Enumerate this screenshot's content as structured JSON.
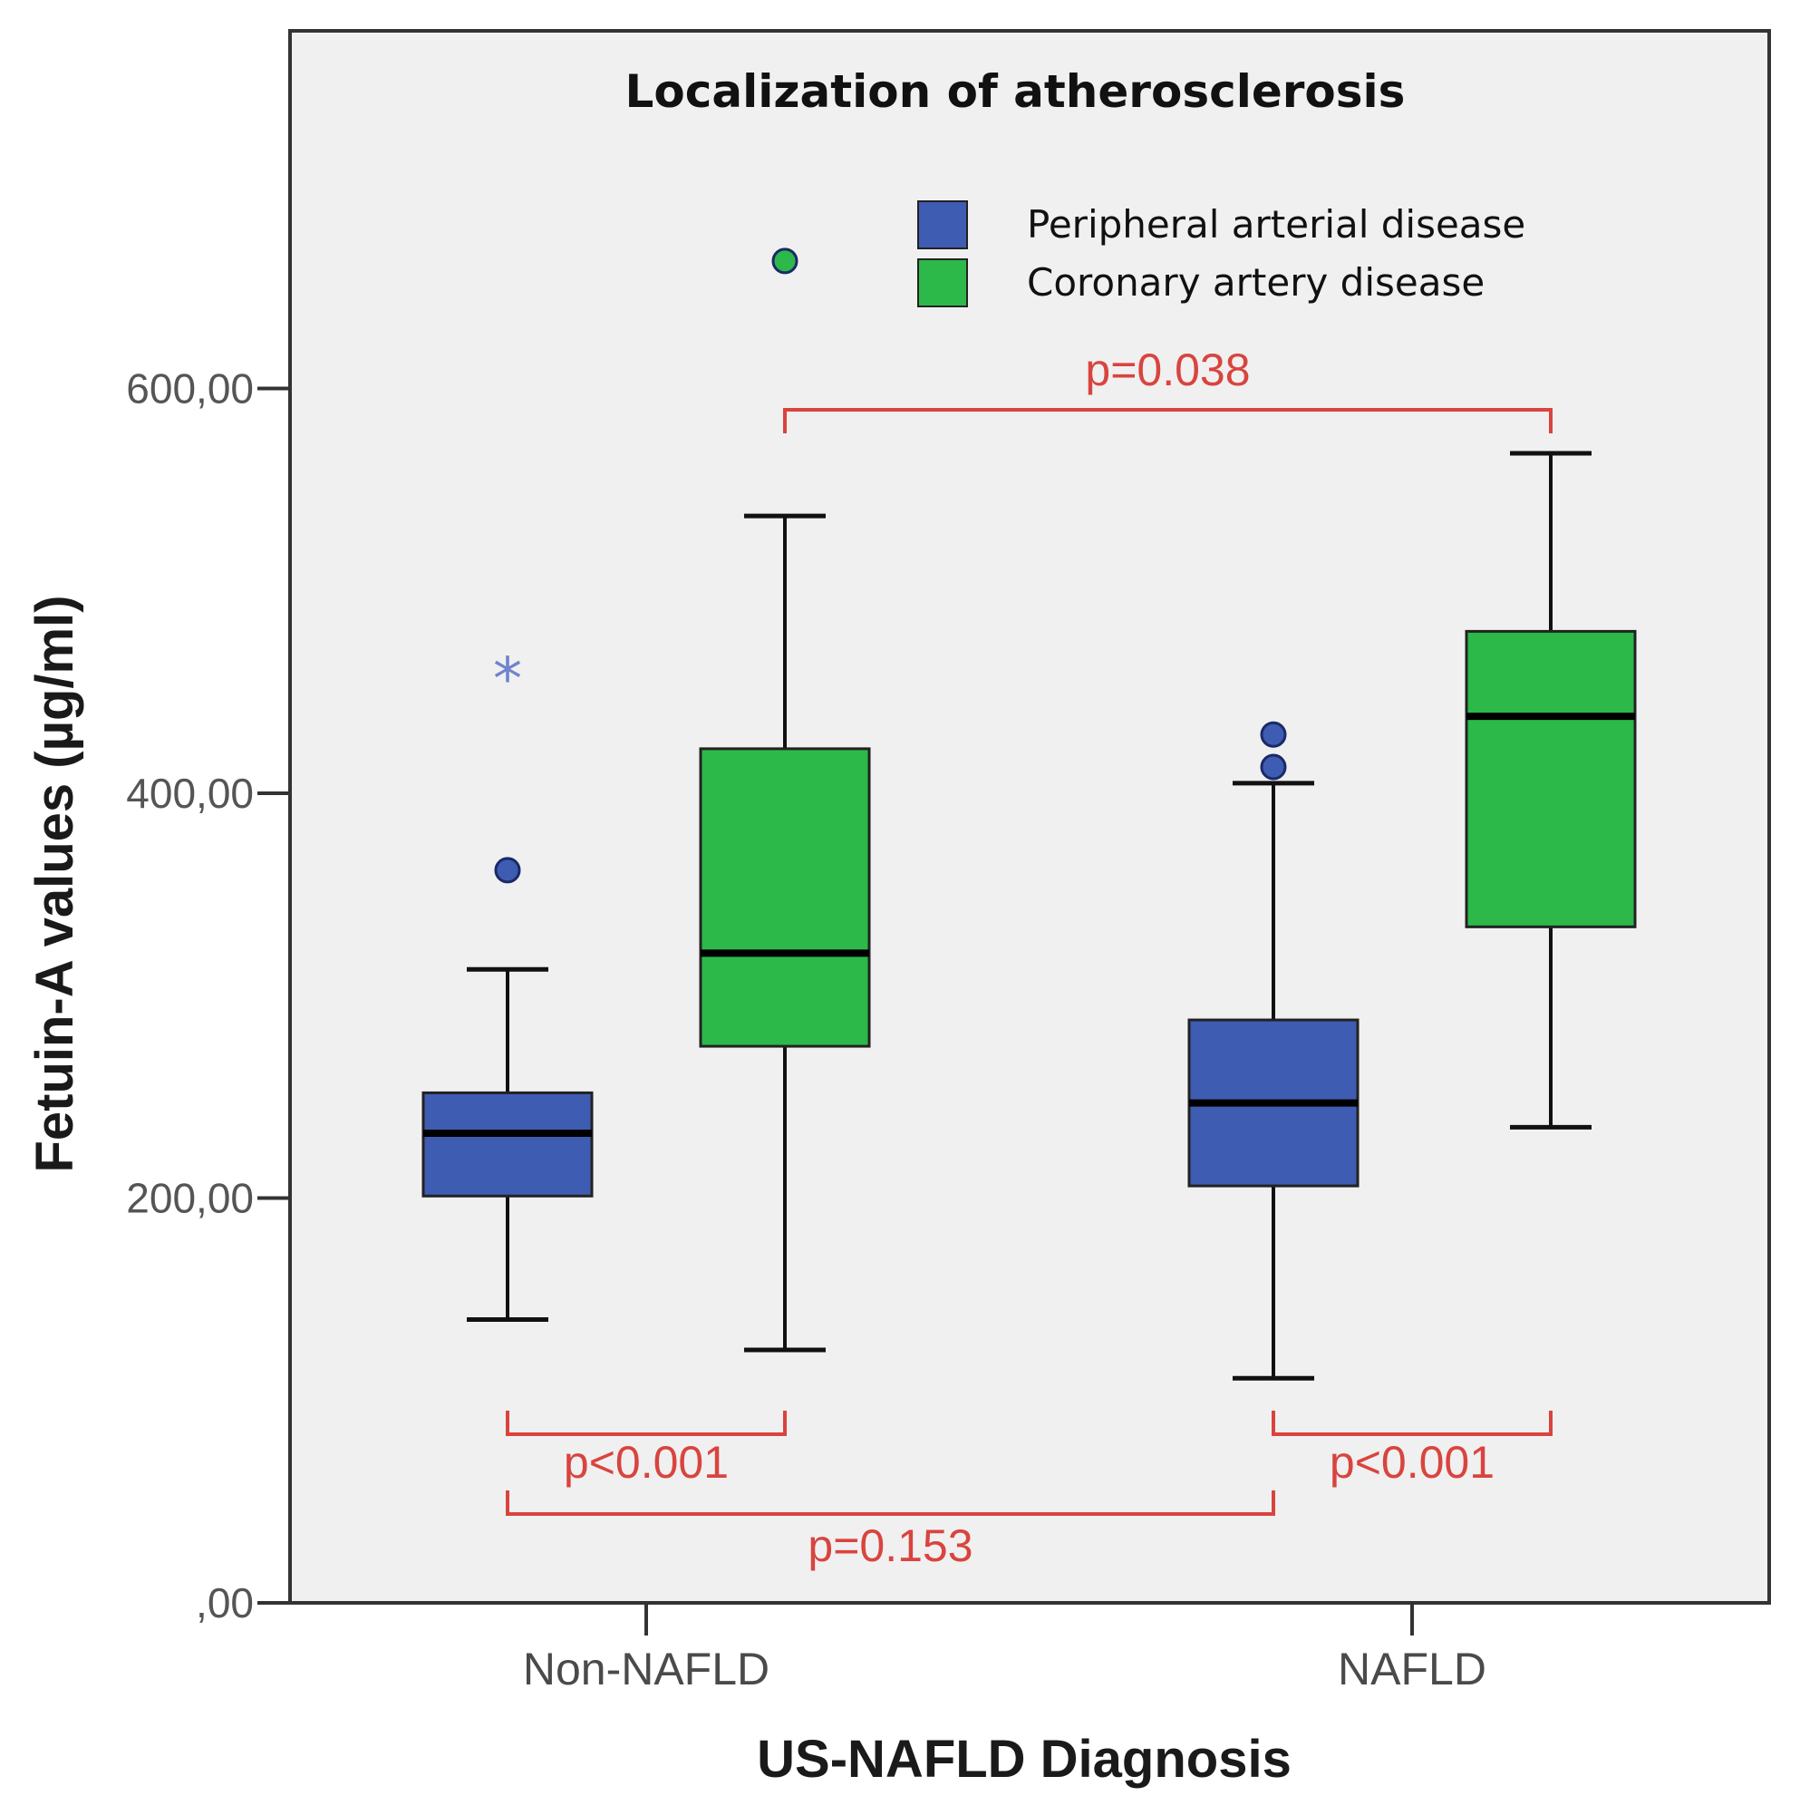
{
  "chart_data": {
    "type": "boxplot",
    "title": "Localization of atherosclerosis",
    "xlabel": "US-NAFLD Diagnosis",
    "ylabel": "Fetuin-A values (µg/ml)",
    "ylim": [
      0,
      790
    ],
    "yticks": [
      0,
      200,
      400,
      600
    ],
    "ytick_labels": [
      ",00",
      "200,00",
      "400,00",
      "600,00"
    ],
    "categories": [
      "Non-NAFLD",
      "NAFLD"
    ],
    "series": [
      {
        "name": "Peripheral arterial disease",
        "color": "#3f5cb3",
        "boxes": [
          {
            "min": 140,
            "q1": 201,
            "median": 232,
            "q3": 252,
            "max": 313,
            "outliers": [
              {
                "value": 362,
                "marker": "circle"
              },
              {
                "value": 460,
                "marker": "star"
              }
            ]
          },
          {
            "min": 111,
            "q1": 206,
            "median": 247,
            "q3": 288,
            "max": 405,
            "outliers": [
              {
                "value": 413,
                "marker": "circle"
              },
              {
                "value": 429,
                "marker": "circle"
              }
            ]
          }
        ]
      },
      {
        "name": "Coronary artery disease",
        "color": "#2db84a",
        "boxes": [
          {
            "min": 125,
            "q1": 275,
            "median": 321,
            "q3": 422,
            "max": 537,
            "outliers": [
              {
                "value": 663,
                "marker": "circle"
              }
            ]
          },
          {
            "min": 235,
            "q1": 334,
            "median": 438,
            "q3": 480,
            "max": 568,
            "outliers": []
          }
        ]
      }
    ],
    "comparisons": [
      {
        "label": "p=0.038",
        "from": "Non-NAFLD / Coronary artery disease",
        "to": "NAFLD / Coronary artery disease",
        "position": "above"
      },
      {
        "label": "p<0.001",
        "from": "Non-NAFLD / Peripheral arterial disease",
        "to": "Non-NAFLD / Coronary artery disease",
        "position": "below"
      },
      {
        "label": "p<0.001",
        "from": "NAFLD / Peripheral arterial disease",
        "to": "NAFLD / Coronary artery disease",
        "position": "below"
      },
      {
        "label": "p=0.153",
        "from": "Non-NAFLD / Peripheral arterial disease",
        "to": "NAFLD / Peripheral arterial disease",
        "position": "below"
      }
    ],
    "annotation_color": "#d9443f",
    "plot_background": "#f0f0f0"
  }
}
